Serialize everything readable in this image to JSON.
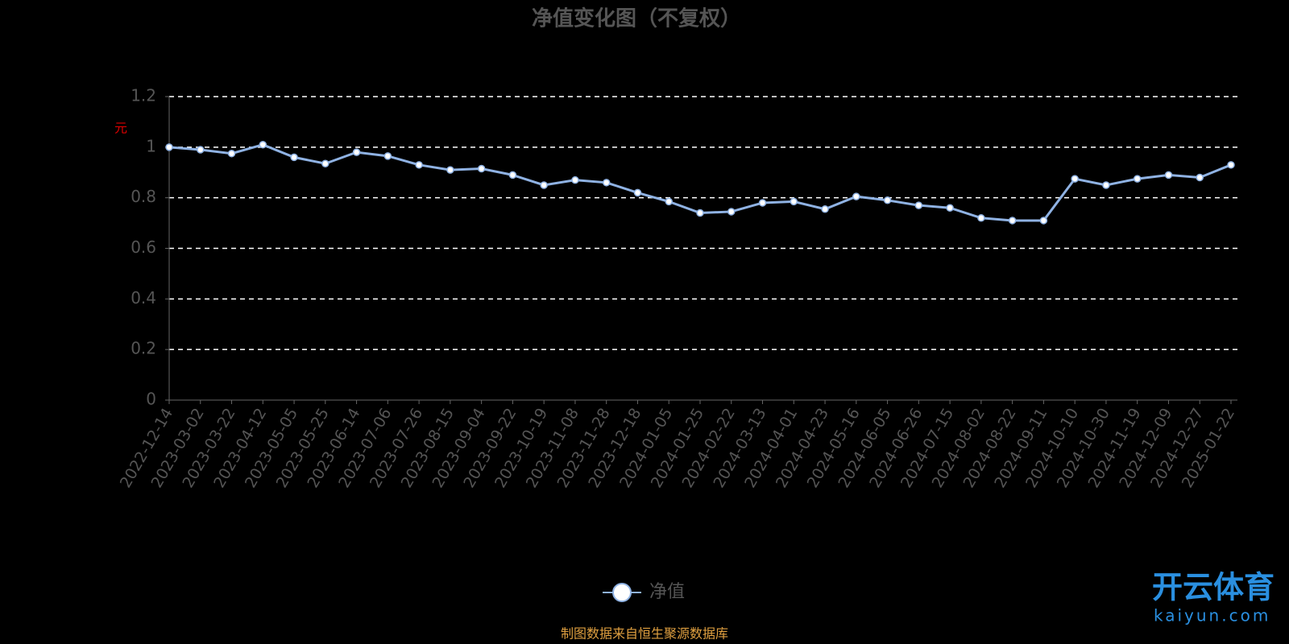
{
  "chart_data": {
    "type": "line",
    "title": "净值变化图（不复权）",
    "y_label": "元",
    "source": "制图数据来自恒生聚源数据库",
    "watermark": {
      "brand": "开云体育",
      "site": "kaiyun.com"
    },
    "categories": [
      "2022-12-14",
      "2023-03-02",
      "2023-03-22",
      "2023-04-12",
      "2023-05-05",
      "2023-05-25",
      "2023-06-14",
      "2023-07-06",
      "2023-07-26",
      "2023-08-15",
      "2023-09-04",
      "2023-09-22",
      "2023-10-19",
      "2023-11-08",
      "2023-11-28",
      "2023-12-18",
      "2024-01-05",
      "2024-01-25",
      "2024-02-22",
      "2024-03-13",
      "2024-04-01",
      "2024-04-23",
      "2024-05-16",
      "2024-06-05",
      "2024-06-26",
      "2024-07-15",
      "2024-08-02",
      "2024-08-22",
      "2024-09-11",
      "2024-10-10",
      "2024-10-30",
      "2024-11-19",
      "2024-12-09",
      "2024-12-27",
      "2025-01-22"
    ],
    "series": [
      {
        "name": "净值",
        "color": "#8fb2e3",
        "values": [
          1.0,
          0.99,
          0.975,
          1.01,
          0.96,
          0.935,
          0.98,
          0.965,
          0.93,
          0.91,
          0.915,
          0.89,
          0.85,
          0.87,
          0.86,
          0.82,
          0.785,
          0.74,
          0.745,
          0.78,
          0.785,
          0.755,
          0.805,
          0.79,
          0.77,
          0.76,
          0.72,
          0.71,
          0.71,
          0.875,
          0.85,
          0.875,
          0.89,
          0.88,
          0.93
        ]
      }
    ],
    "ylim": [
      0,
      1.2
    ],
    "yticks": [
      0,
      0.2,
      0.4,
      0.6,
      0.8,
      1,
      1.2
    ],
    "grid": true
  }
}
